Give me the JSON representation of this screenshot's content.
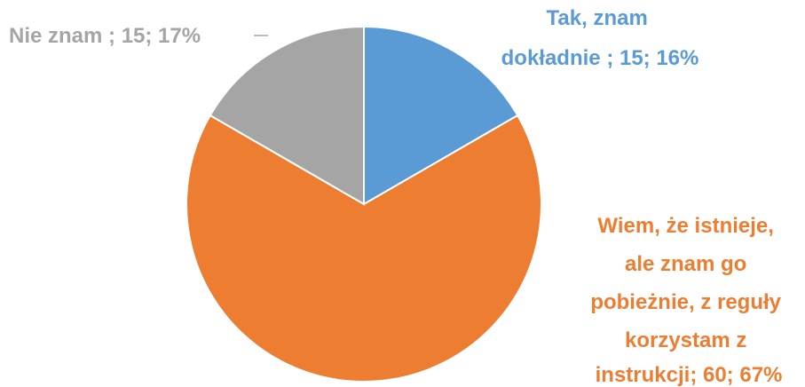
{
  "chart_data": {
    "type": "pie",
    "title": "",
    "slices": [
      {
        "name": "Tak, znam dokładnie",
        "value": 15,
        "percent": 16,
        "color": "#5B9BD5",
        "label_lines": [
          "Tak, znam",
          "dokładnie ; 15; 16%"
        ]
      },
      {
        "name": "Wiem, że istnieje, ale znam go pobieżnie, z reguły korzystam z instrukcji",
        "value": 60,
        "percent": 67,
        "color": "#ED7D31",
        "label_lines": [
          "Wiem, że istnieje,",
          "ale znam go",
          "pobieżnie, z reguły",
          "korzystam z",
          "instrukcji; 60; 67%"
        ]
      },
      {
        "name": "Nie znam",
        "value": 15,
        "percent": 17,
        "color": "#A5A5A5",
        "label_lines": [
          "Nie znam ; 15; 17%"
        ]
      }
    ],
    "legend": false
  }
}
